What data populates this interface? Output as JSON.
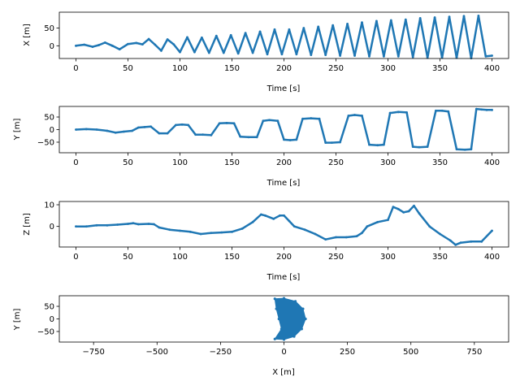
{
  "colors": {
    "series": "#1f77b4",
    "axis": "#000000",
    "background": "#ffffff"
  },
  "chart_data": [
    {
      "type": "line",
      "xlabel": "Time [s]",
      "ylabel": "X [m]",
      "xlim": [
        -16,
        416
      ],
      "ylim": [
        -36,
        95
      ],
      "xticks": [
        0,
        50,
        100,
        150,
        200,
        250,
        300,
        350,
        400
      ],
      "yticks": [
        0,
        50
      ],
      "grid": false,
      "series": [
        {
          "x": [
            0,
            8,
            16,
            22,
            28,
            35,
            42,
            50,
            58,
            64,
            70,
            76,
            82,
            88,
            94,
            100,
            107,
            114,
            121,
            128,
            135,
            142,
            149,
            156,
            163,
            170,
            177,
            184,
            191,
            198,
            205,
            212,
            219,
            226,
            233,
            240,
            247,
            254,
            261,
            268,
            275,
            282,
            289,
            296,
            303,
            310,
            317,
            324,
            331,
            338,
            345,
            352,
            359,
            366,
            373,
            380,
            387,
            394,
            400
          ],
          "y": [
            0,
            3,
            -3,
            2,
            9,
            0,
            -10,
            5,
            8,
            4,
            19,
            3,
            -14,
            18,
            4,
            -18,
            24,
            -18,
            23,
            -20,
            28,
            -20,
            30,
            -22,
            36,
            -20,
            40,
            -24,
            46,
            -24,
            46,
            -24,
            50,
            -26,
            54,
            -26,
            58,
            -28,
            62,
            -28,
            66,
            -30,
            70,
            -30,
            72,
            -30,
            74,
            -32,
            78,
            -34,
            80,
            -34,
            82,
            -34,
            84,
            -35,
            85,
            -30,
            -28
          ]
        }
      ]
    },
    {
      "type": "line",
      "xlabel": "Time [s]",
      "ylabel": "Y [m]",
      "xlim": [
        -16,
        416
      ],
      "ylim": [
        -92,
        92
      ],
      "xticks": [
        0,
        50,
        100,
        150,
        200,
        250,
        300,
        350,
        400
      ],
      "yticks": [
        -50,
        0,
        50
      ],
      "grid": false,
      "series": [
        {
          "x": [
            0,
            10,
            20,
            30,
            38,
            46,
            54,
            60,
            66,
            72,
            80,
            88,
            96,
            102,
            108,
            115,
            122,
            130,
            138,
            145,
            152,
            158,
            166,
            174,
            180,
            186,
            194,
            200,
            206,
            212,
            218,
            226,
            234,
            240,
            246,
            254,
            262,
            268,
            275,
            282,
            290,
            296,
            302,
            310,
            318,
            324,
            330,
            338,
            346,
            352,
            358,
            366,
            374,
            380,
            385,
            390,
            395,
            400
          ],
          "y": [
            0,
            2,
            0,
            -5,
            -12,
            -8,
            -5,
            8,
            10,
            12,
            -15,
            -15,
            18,
            20,
            18,
            -20,
            -20,
            -22,
            25,
            26,
            25,
            -28,
            -30,
            -30,
            35,
            38,
            35,
            -40,
            -42,
            -40,
            43,
            45,
            43,
            -52,
            -52,
            -50,
            55,
            58,
            55,
            -60,
            -62,
            -60,
            66,
            70,
            68,
            -68,
            -70,
            -68,
            75,
            75,
            72,
            -78,
            -80,
            -78,
            82,
            80,
            78,
            78
          ]
        }
      ]
    },
    {
      "type": "line",
      "xlabel": "Time [s]",
      "ylabel": "Z [m]",
      "xlim": [
        -16,
        416
      ],
      "ylim": [
        -9.5,
        11.5
      ],
      "xticks": [
        0,
        50,
        100,
        150,
        200,
        250,
        300,
        350,
        400
      ],
      "yticks": [
        0,
        10
      ],
      "grid": false,
      "series": [
        {
          "x": [
            0,
            10,
            20,
            30,
            40,
            50,
            55,
            60,
            70,
            75,
            80,
            90,
            100,
            110,
            120,
            130,
            140,
            150,
            160,
            170,
            178,
            182,
            190,
            196,
            200,
            205,
            210,
            220,
            230,
            240,
            250,
            260,
            270,
            275,
            280,
            290,
            300,
            305,
            310,
            315,
            320,
            325,
            330,
            340,
            350,
            360,
            365,
            370,
            380,
            390,
            400
          ],
          "y": [
            0,
            0,
            0.5,
            0.5,
            0.8,
            1.2,
            1.5,
            1,
            1.2,
            1,
            -0.5,
            -1.5,
            -2,
            -2.5,
            -3.5,
            -3,
            -2.8,
            -2.5,
            -1,
            2,
            5.5,
            5,
            3.5,
            5,
            5,
            2.5,
            0,
            -1.5,
            -3.5,
            -6,
            -5,
            -5,
            -4.5,
            -3,
            0,
            2,
            3,
            9,
            8,
            6.5,
            7,
            9.5,
            6,
            0,
            -3.5,
            -6.5,
            -8.5,
            -7.5,
            -7,
            -7,
            -2
          ]
        }
      ]
    },
    {
      "type": "scatter",
      "xlabel": "X [m]",
      "ylabel": "Y [m]",
      "xlim": [
        -885,
        885
      ],
      "ylim": [
        -92,
        92
      ],
      "xticks": [
        -750,
        -500,
        -250,
        0,
        250,
        500,
        750
      ],
      "yticks": [
        -50,
        0,
        50
      ],
      "grid": false,
      "series": [
        {
          "x": [
            -36,
            0,
            40,
            70,
            85,
            75,
            45,
            0,
            -36,
            -30,
            -20,
            -10
          ],
          "y": [
            -80,
            -82,
            -70,
            -40,
            0,
            40,
            70,
            82,
            80,
            40,
            0,
            -40
          ]
        }
      ]
    }
  ],
  "ticks": {
    "p0x": [
      "0",
      "50",
      "100",
      "150",
      "200",
      "250",
      "300",
      "350",
      "400"
    ],
    "p0y": [
      "0",
      "50"
    ],
    "p1x": [
      "0",
      "50",
      "100",
      "150",
      "200",
      "250",
      "300",
      "350",
      "400"
    ],
    "p1y": [
      "−50",
      "0",
      "50"
    ],
    "p2x": [
      "0",
      "50",
      "100",
      "150",
      "200",
      "250",
      "300",
      "350",
      "400"
    ],
    "p2y": [
      "0",
      "10"
    ],
    "p3x": [
      "−750",
      "−500",
      "−250",
      "0",
      "250",
      "500",
      "750"
    ],
    "p3y": [
      "−50",
      "0",
      "50"
    ]
  }
}
